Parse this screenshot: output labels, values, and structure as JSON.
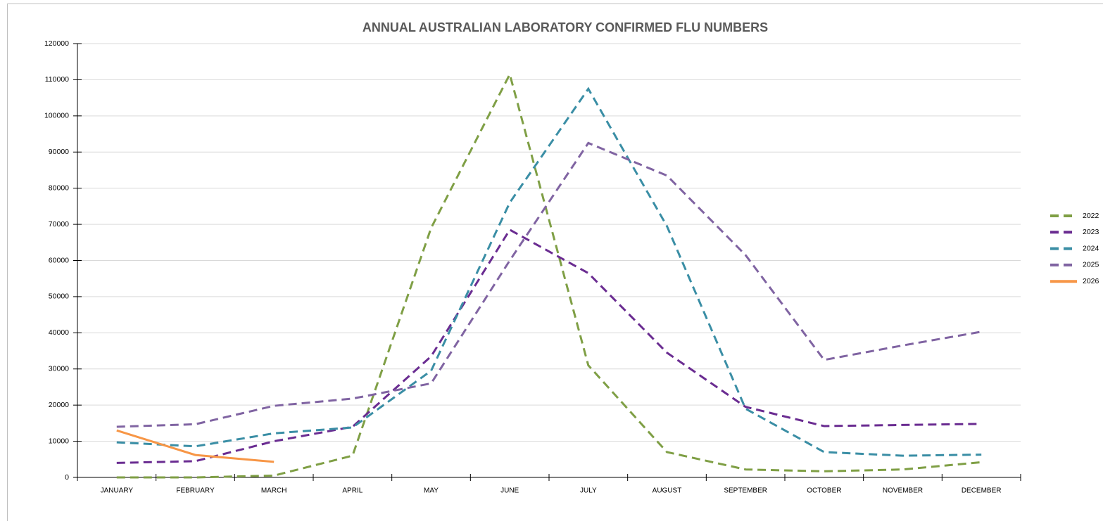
{
  "chart_data": {
    "type": "line",
    "title": "ANNUAL AUSTRALIAN LABORATORY CONFIRMED FLU NUMBERS",
    "categories": [
      "JANUARY",
      "FEBRUARY",
      "MARCH",
      "APRIL",
      "MAY",
      "JUNE",
      "JULY",
      "AUGUST",
      "SEPTEMBER",
      "OCTOBER",
      "NOVEMBER",
      "DECEMBER"
    ],
    "series": [
      {
        "name": "2022",
        "color": "#7f9f45",
        "dashed": true,
        "values": [
          0,
          0,
          500,
          6000,
          69000,
          111500,
          31000,
          7000,
          2200,
          1700,
          2200,
          4200
        ]
      },
      {
        "name": "2023",
        "color": "#6a2c91",
        "dashed": true,
        "values": [
          4000,
          4500,
          10000,
          14000,
          33500,
          68500,
          56500,
          34500,
          19500,
          14200,
          14500,
          14800
        ]
      },
      {
        "name": "2024",
        "color": "#3a8ea5",
        "dashed": true,
        "values": [
          9700,
          8600,
          12200,
          13800,
          29500,
          76000,
          107500,
          69500,
          19000,
          7000,
          6000,
          6300
        ]
      },
      {
        "name": "2025",
        "color": "#8064a2",
        "dashed": true,
        "values": [
          14000,
          14700,
          19800,
          21800,
          26000,
          60000,
          92500,
          83500,
          61500,
          32500,
          36500,
          40300
        ]
      },
      {
        "name": "2026",
        "color": "#f79646",
        "dashed": false,
        "values": [
          13000,
          6200,
          4300,
          null,
          null,
          null,
          null,
          null,
          null,
          null,
          null,
          null
        ]
      }
    ],
    "ylim": [
      0,
      120000
    ],
    "yticks": [
      0,
      10000,
      20000,
      30000,
      40000,
      50000,
      60000,
      70000,
      80000,
      90000,
      100000,
      110000,
      120000
    ],
    "grid": true,
    "legend": "right"
  }
}
